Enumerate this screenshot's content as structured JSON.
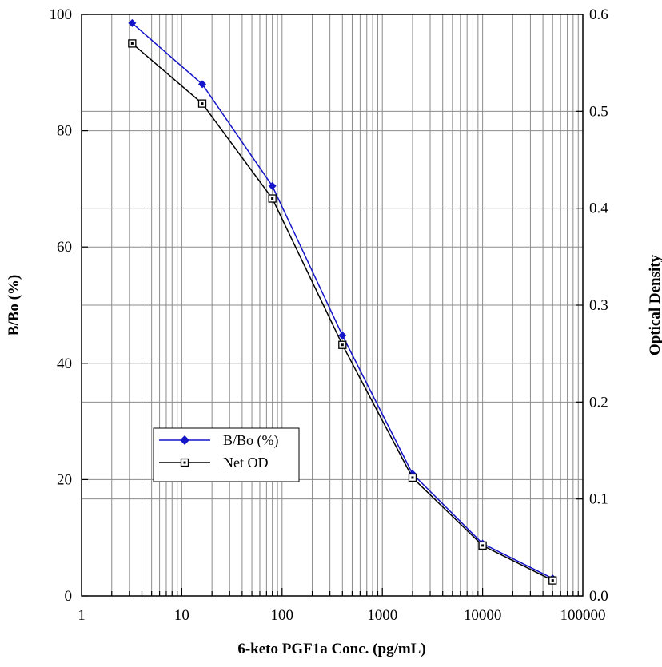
{
  "chart_data": {
    "type": "line",
    "xlabel": "6-keto PGF1a Conc. (pg/mL)",
    "ylabel_left": "B/Bo (%)",
    "ylabel_right": "Optical Density",
    "x_scale": "log",
    "xlim": [
      1,
      100000
    ],
    "ylim_left": [
      0,
      100
    ],
    "ylim_right": [
      0.0,
      0.6
    ],
    "grid": true,
    "legend_position": "bottom-left",
    "x_tick_labels": [
      "1",
      "10",
      "100",
      "1000",
      "10000",
      "100000"
    ],
    "y_left_tick_labels": [
      "0",
      "20",
      "40",
      "60",
      "80",
      "100"
    ],
    "y_right_tick_labels": [
      "0.0",
      "0.1",
      "0.2",
      "0.3",
      "0.4",
      "0.5",
      "0.6"
    ],
    "series": [
      {
        "name": "B/Bo (%)",
        "axis": "left",
        "color": "#1414c8",
        "marker": "filled-diamond",
        "x": [
          3.2,
          16,
          80,
          400,
          2000,
          10000,
          50000
        ],
        "y": [
          98.5,
          88,
          70.5,
          44.8,
          21,
          9,
          3
        ]
      },
      {
        "name": "Net OD",
        "axis": "right",
        "color": "#000000",
        "marker": "open-square",
        "x": [
          3.2,
          16,
          80,
          400,
          2000,
          10000,
          50000
        ],
        "y": [
          0.57,
          0.508,
          0.41,
          0.259,
          0.122,
          0.052,
          0.016
        ]
      }
    ]
  }
}
